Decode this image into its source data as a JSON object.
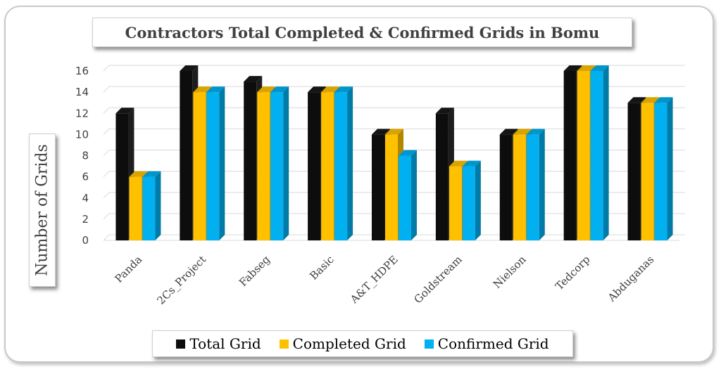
{
  "chart_data": {
    "type": "bar",
    "title": "Contractors Total Completed & Confirmed Grids in Bomu",
    "ylabel": "Number of Grids",
    "xlabel": "",
    "ylim": [
      0,
      16
    ],
    "yticks": [
      0,
      2,
      4,
      6,
      8,
      10,
      12,
      14,
      16
    ],
    "grid": true,
    "legend_position": "bottom",
    "categories": [
      "Panda",
      "2Cs_Project",
      "Fabseg",
      "Basic",
      "A&T_HDPE",
      "Goldstream",
      "Nielson",
      "Tedcorp",
      "Abduganas"
    ],
    "series": [
      {
        "name": "Total Grid",
        "color": "#0d0d0d",
        "values": [
          12,
          16,
          15,
          14,
          10,
          12,
          10,
          16,
          13
        ]
      },
      {
        "name": "Completed Grid",
        "color": "#ffc000",
        "values": [
          6,
          14,
          14,
          14,
          10,
          7,
          10,
          16,
          13
        ]
      },
      {
        "name": "Confirmed Grid",
        "color": "#00b0f0",
        "values": [
          6,
          14,
          14,
          14,
          8,
          7,
          10,
          16,
          13
        ]
      }
    ]
  }
}
